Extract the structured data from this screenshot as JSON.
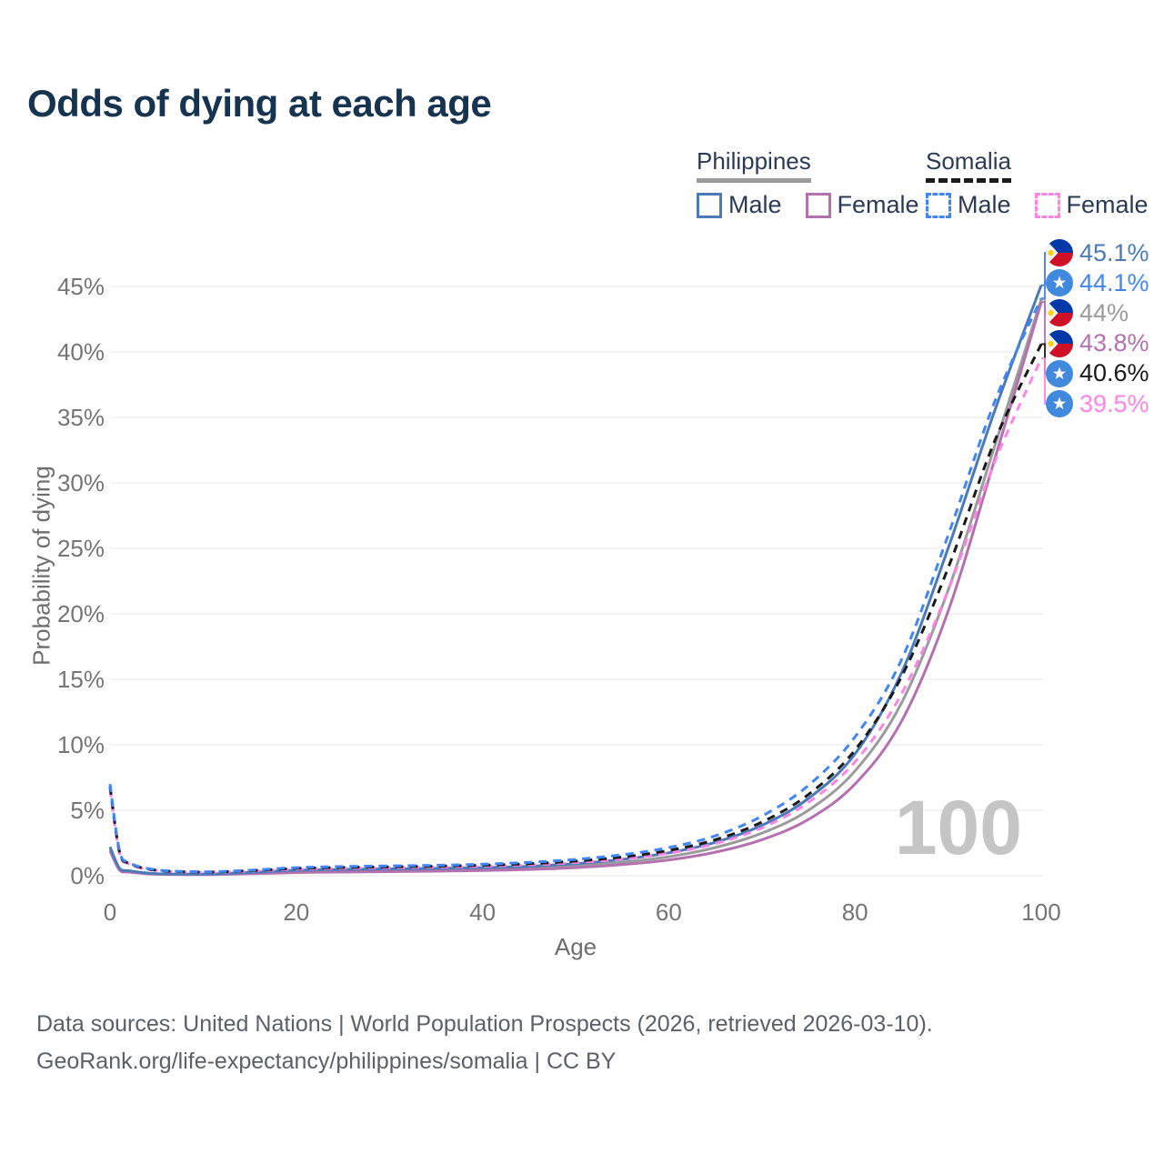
{
  "title": "Odds of dying at each age",
  "legend": {
    "groups": [
      {
        "label": "Philippines",
        "underline_style": "solid",
        "underline_color": "#9b9b9b",
        "items": [
          {
            "label": "Male",
            "color": "#4a7ab8",
            "style": "solid"
          },
          {
            "label": "Female",
            "color": "#b471b0",
            "style": "solid"
          }
        ]
      },
      {
        "label": "Somalia",
        "underline_style": "dashed",
        "underline_color": "#1a1a1a",
        "items": [
          {
            "label": "Male",
            "color": "#4285f4",
            "style": "dashed"
          },
          {
            "label": "Female",
            "color": "#fd84e4",
            "style": "dashed"
          }
        ]
      }
    ]
  },
  "y_axis": {
    "title": "Probability of dying",
    "ticks": [
      "0%",
      "5%",
      "10%",
      "15%",
      "20%",
      "25%",
      "30%",
      "35%",
      "40%",
      "45%"
    ],
    "tick_values": [
      0,
      5,
      10,
      15,
      20,
      25,
      30,
      35,
      40,
      45
    ]
  },
  "x_axis": {
    "title": "Age",
    "ticks": [
      "0",
      "20",
      "40",
      "60",
      "80",
      "100"
    ],
    "tick_values": [
      0,
      20,
      40,
      60,
      80,
      100
    ]
  },
  "watermark": "100",
  "end_labels": [
    {
      "text": "45.1%",
      "value": 45.1,
      "color": "#4a7ab8",
      "flag": "ph",
      "series": "Philippines Male"
    },
    {
      "text": "44.1%",
      "value": 44.1,
      "color": "#4285f4",
      "flag": "so",
      "series": "Somalia Male"
    },
    {
      "text": "44%",
      "value": 44.0,
      "color": "#9b9b9b",
      "flag": "ph",
      "series": "Philippines Both sexes"
    },
    {
      "text": "43.8%",
      "value": 43.8,
      "color": "#b471b0",
      "flag": "ph",
      "series": "Philippines Female"
    },
    {
      "text": "40.6%",
      "value": 40.6,
      "color": "#1a1a1a",
      "flag": "so",
      "series": "Somalia Both sexes"
    },
    {
      "text": "39.5%",
      "value": 39.5,
      "color": "#fd84e4",
      "flag": "so",
      "series": "Somalia Female"
    }
  ],
  "footer": {
    "line1": "Data sources: United Nations | World Population Prospects (2026, retrieved 2026-03-10).",
    "line2": "GeoRank.org/life-expectancy/philippines/somalia | CC BY"
  },
  "chart_data": {
    "type": "line",
    "title": "Odds of dying at each age",
    "xlabel": "Age",
    "ylabel": "Probability of dying",
    "xlim": [
      0,
      100
    ],
    "ylim": [
      0,
      45
    ],
    "x_ticks": [
      0,
      20,
      40,
      60,
      80,
      100
    ],
    "y_ticks_percent": [
      0,
      5,
      10,
      15,
      20,
      25,
      30,
      35,
      40,
      45
    ],
    "grid": "horizontal",
    "legend_position": "top-right",
    "x": [
      0,
      1,
      2,
      5,
      10,
      15,
      20,
      25,
      30,
      35,
      40,
      45,
      50,
      55,
      60,
      65,
      70,
      75,
      80,
      85,
      90,
      95,
      100
    ],
    "series": [
      {
        "name": "Philippines Both sexes",
        "color": "#9b9b9b",
        "dash": "solid",
        "end_label": "44%",
        "values": [
          2.05,
          0.52,
          0.33,
          0.14,
          0.11,
          0.2,
          0.33,
          0.38,
          0.42,
          0.45,
          0.5,
          0.59,
          0.76,
          1.03,
          1.45,
          2.15,
          3.25,
          5.0,
          8.0,
          13.2,
          21.8,
          32.8,
          44.0
        ]
      },
      {
        "name": "Philippines Female",
        "color": "#b471b0",
        "dash": "solid",
        "end_label": "43.8%",
        "values": [
          1.9,
          0.45,
          0.28,
          0.12,
          0.09,
          0.15,
          0.24,
          0.28,
          0.31,
          0.35,
          0.4,
          0.48,
          0.62,
          0.85,
          1.2,
          1.8,
          2.75,
          4.3,
          7.0,
          11.8,
          20.2,
          31.8,
          43.8
        ]
      },
      {
        "name": "Philippines Male",
        "color": "#4a7ab8",
        "dash": "solid",
        "end_label": "45.1%",
        "values": [
          2.2,
          0.6,
          0.38,
          0.16,
          0.13,
          0.25,
          0.42,
          0.48,
          0.52,
          0.56,
          0.62,
          0.72,
          0.92,
          1.25,
          1.75,
          2.55,
          3.85,
          5.9,
          9.3,
          15.5,
          25.0,
          35.5,
          45.1
        ]
      },
      {
        "name": "Somalia Female",
        "color": "#fd84e4",
        "dash": "dashed",
        "end_label": "39.5%",
        "values": [
          6.6,
          1.8,
          0.9,
          0.4,
          0.26,
          0.35,
          0.5,
          0.57,
          0.61,
          0.66,
          0.72,
          0.83,
          1.0,
          1.28,
          1.72,
          2.45,
          3.65,
          5.6,
          8.7,
          13.9,
          21.8,
          31.6,
          39.5
        ]
      },
      {
        "name": "Somalia Both sexes",
        "color": "#1a1a1a",
        "dash": "dashed",
        "end_label": "40.6%",
        "values": [
          6.8,
          1.9,
          0.95,
          0.42,
          0.28,
          0.38,
          0.56,
          0.63,
          0.68,
          0.73,
          0.8,
          0.92,
          1.12,
          1.43,
          1.93,
          2.75,
          4.1,
          6.2,
          9.6,
          15.2,
          23.5,
          33.2,
          40.6
        ]
      },
      {
        "name": "Somalia Male",
        "color": "#4285f4",
        "dash": "dashed",
        "end_label": "44.1%",
        "values": [
          7.0,
          2.0,
          1.0,
          0.45,
          0.3,
          0.42,
          0.62,
          0.7,
          0.75,
          0.8,
          0.88,
          1.02,
          1.25,
          1.6,
          2.15,
          3.05,
          4.55,
          6.9,
          10.6,
          16.5,
          26.0,
          36.2,
          44.1
        ]
      }
    ]
  }
}
